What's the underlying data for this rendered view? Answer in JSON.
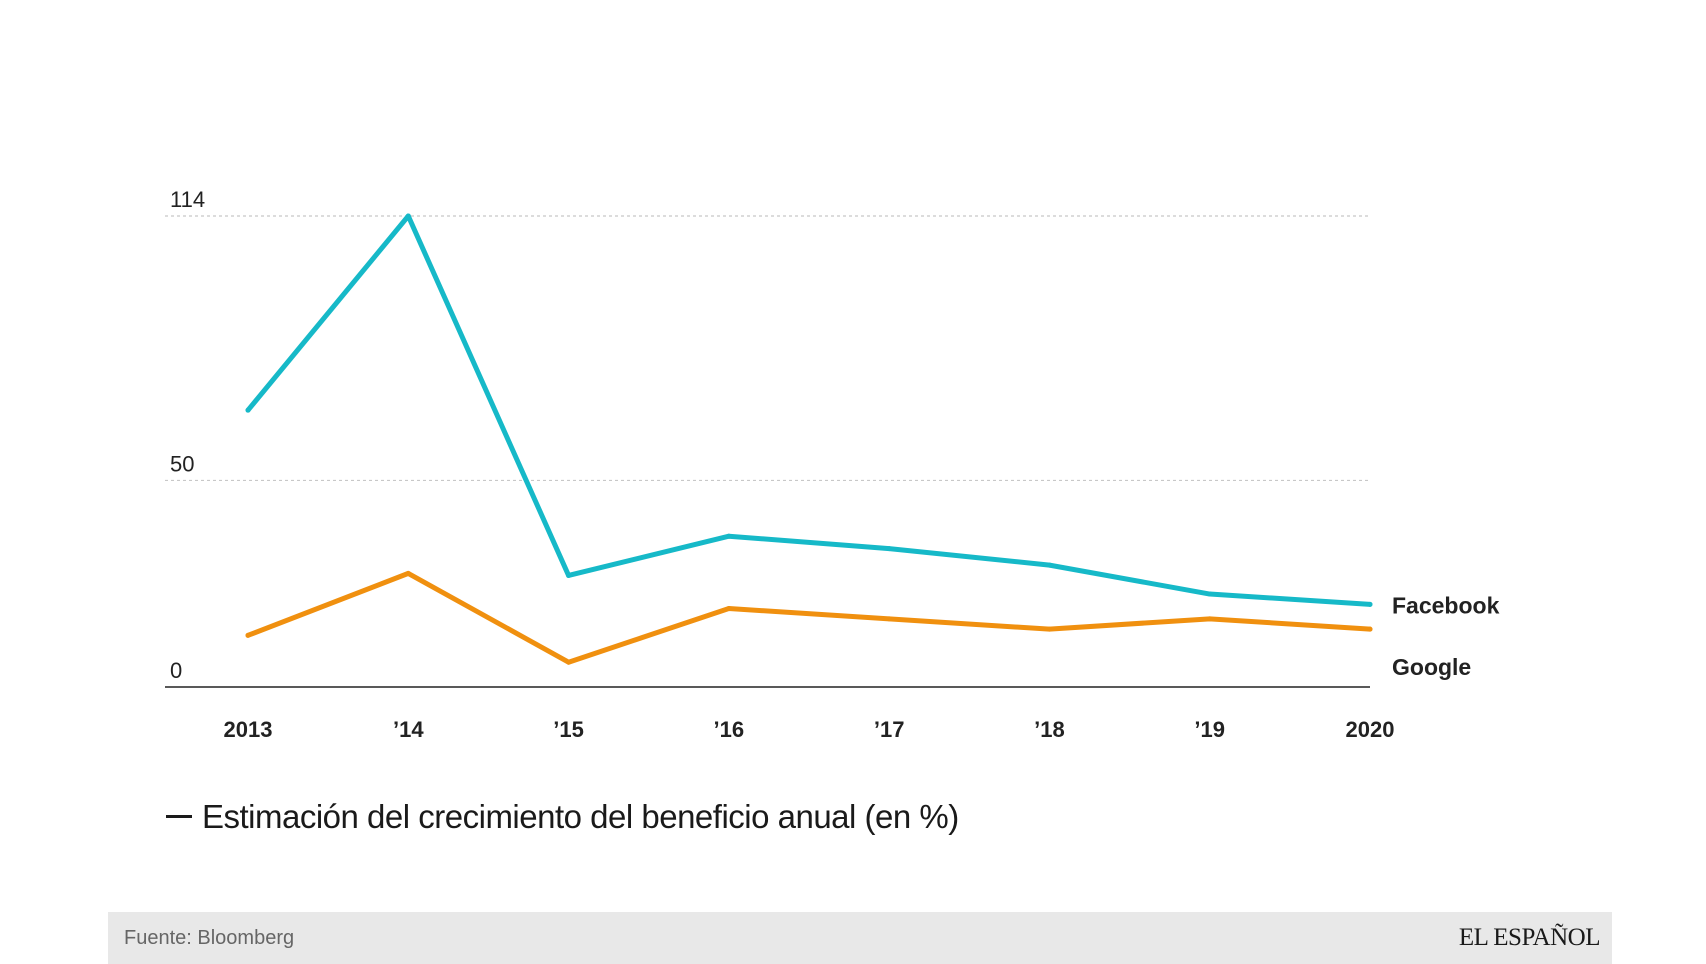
{
  "chart_data": {
    "type": "line",
    "title": "Estimación del crecimiento del beneficio anual (en %)",
    "xlabel": "",
    "ylabel": "",
    "categories": [
      "2013",
      "’14",
      "’15",
      "’16",
      "’17",
      "’18",
      "’19",
      "2020"
    ],
    "yticks": [
      "114",
      "50",
      "0"
    ],
    "ylim": [
      0,
      114
    ],
    "grid": true,
    "series": [
      {
        "name": "Facebook",
        "color": "#16b9c8",
        "values": [
          67,
          114,
          27,
          36.5,
          33.5,
          29.5,
          22.5,
          20
        ]
      },
      {
        "name": "Google",
        "color": "#f0900f",
        "values": [
          12.5,
          27.5,
          6,
          19,
          16.5,
          14,
          16.5,
          14
        ]
      }
    ]
  },
  "footer": {
    "source": "Fuente: Bloomberg",
    "brand": "EL ESPAÑOL"
  }
}
